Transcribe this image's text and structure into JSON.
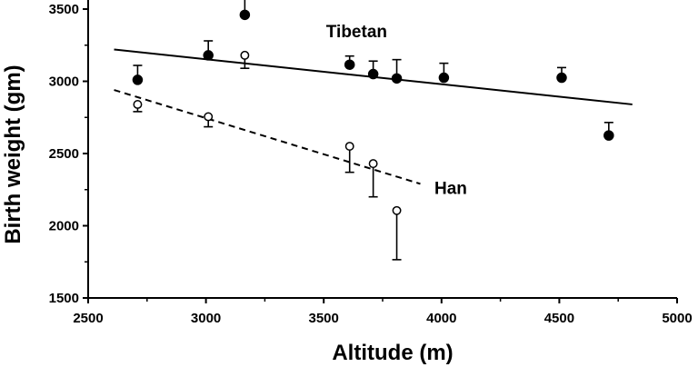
{
  "chart_data": {
    "type": "scatter",
    "xlabel": "Altitude (m)",
    "ylabel": "Birth weight (gm)",
    "xlim": [
      2500,
      5000
    ],
    "ylim": [
      1500,
      3500
    ],
    "x_ticks": [
      2500,
      3000,
      3500,
      4000,
      4500,
      5000
    ],
    "y_ticks": [
      1500,
      2000,
      2500,
      3000,
      3500
    ],
    "grid": false,
    "legend": "none",
    "series": [
      {
        "name": "Tibetan",
        "marker": "filled-circle",
        "color": "#000000",
        "error_bar_direction": "up",
        "points": [
          {
            "x": 2710,
            "y": 3010,
            "err": 100
          },
          {
            "x": 3010,
            "y": 3180,
            "err": 100
          },
          {
            "x": 3165,
            "y": 3460,
            "err": 110
          },
          {
            "x": 3610,
            "y": 3115,
            "err": 60
          },
          {
            "x": 3710,
            "y": 3050,
            "err": 90
          },
          {
            "x": 3810,
            "y": 3020,
            "err": 130
          },
          {
            "x": 4010,
            "y": 3025,
            "err": 100
          },
          {
            "x": 4510,
            "y": 3025,
            "err": 70
          },
          {
            "x": 4710,
            "y": 2625,
            "err": 90
          }
        ],
        "trend_line": {
          "style": "solid",
          "x": [
            2610,
            4810
          ],
          "y": [
            3220,
            2840
          ]
        }
      },
      {
        "name": "Han",
        "marker": "open-circle",
        "color": "#000000",
        "error_bar_direction": "down",
        "points": [
          {
            "x": 2710,
            "y": 2840,
            "err": 50
          },
          {
            "x": 3010,
            "y": 2755,
            "err": 70
          },
          {
            "x": 3165,
            "y": 3180,
            "err": 90
          },
          {
            "x": 3610,
            "y": 2550,
            "err": 180
          },
          {
            "x": 3710,
            "y": 2430,
            "err": 230
          },
          {
            "x": 3810,
            "y": 2105,
            "err": 340
          }
        ],
        "trend_line": {
          "style": "dashed",
          "x": [
            2610,
            3910
          ],
          "y": [
            2940,
            2290
          ]
        }
      }
    ],
    "annotations": [
      {
        "text": "Tibetan",
        "x": 3510,
        "y": 3305
      },
      {
        "text": "Han",
        "x": 3970,
        "y": 2220
      }
    ]
  }
}
